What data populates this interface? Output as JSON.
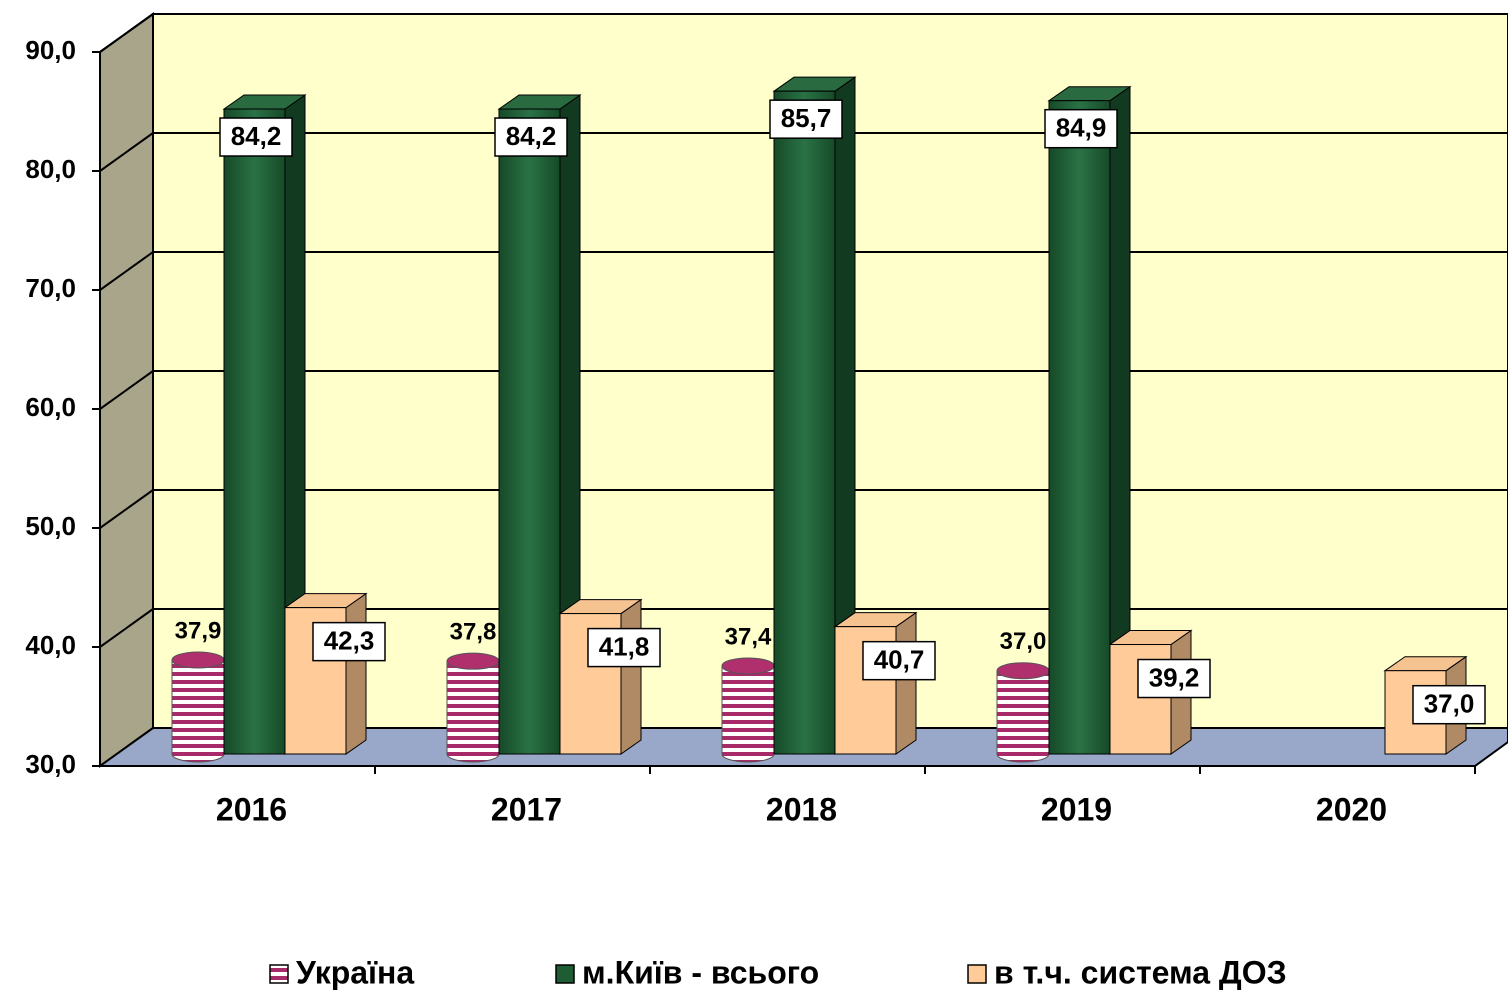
{
  "chart_data": {
    "type": "bar3d",
    "categories": [
      "2016",
      "2017",
      "2018",
      "2019",
      "2020"
    ],
    "series": [
      {
        "name": "Україна",
        "color": "#b0306e",
        "values": [
          37.9,
          37.8,
          37.4,
          37.0,
          null
        ],
        "value_labels": [
          "37,9",
          "37,8",
          "37,4",
          "37,0",
          null
        ]
      },
      {
        "name": "м.Київ - всього",
        "color": "#1e5c34",
        "values": [
          84.2,
          84.2,
          85.7,
          84.9,
          null
        ],
        "value_labels": [
          "84,2",
          "84,2",
          "85,7",
          "84,9",
          null
        ]
      },
      {
        "name": "в т.ч. система ДОЗ",
        "color": "#ffcc99",
        "values": [
          42.3,
          41.8,
          40.7,
          39.2,
          37.0
        ],
        "value_labels": [
          "42,3",
          "41,8",
          "40,7",
          "39,2",
          "37,0"
        ]
      }
    ],
    "ylim": [
      30,
      90
    ],
    "yticks": [
      {
        "value": 30,
        "label": "30,0"
      },
      {
        "value": 40,
        "label": "40,0"
      },
      {
        "value": 50,
        "label": "50,0"
      },
      {
        "value": 60,
        "label": "60,0"
      },
      {
        "value": 70,
        "label": "70,0"
      },
      {
        "value": 80,
        "label": "80,0"
      },
      {
        "value": 90,
        "label": "90,0"
      }
    ],
    "grid": true
  }
}
